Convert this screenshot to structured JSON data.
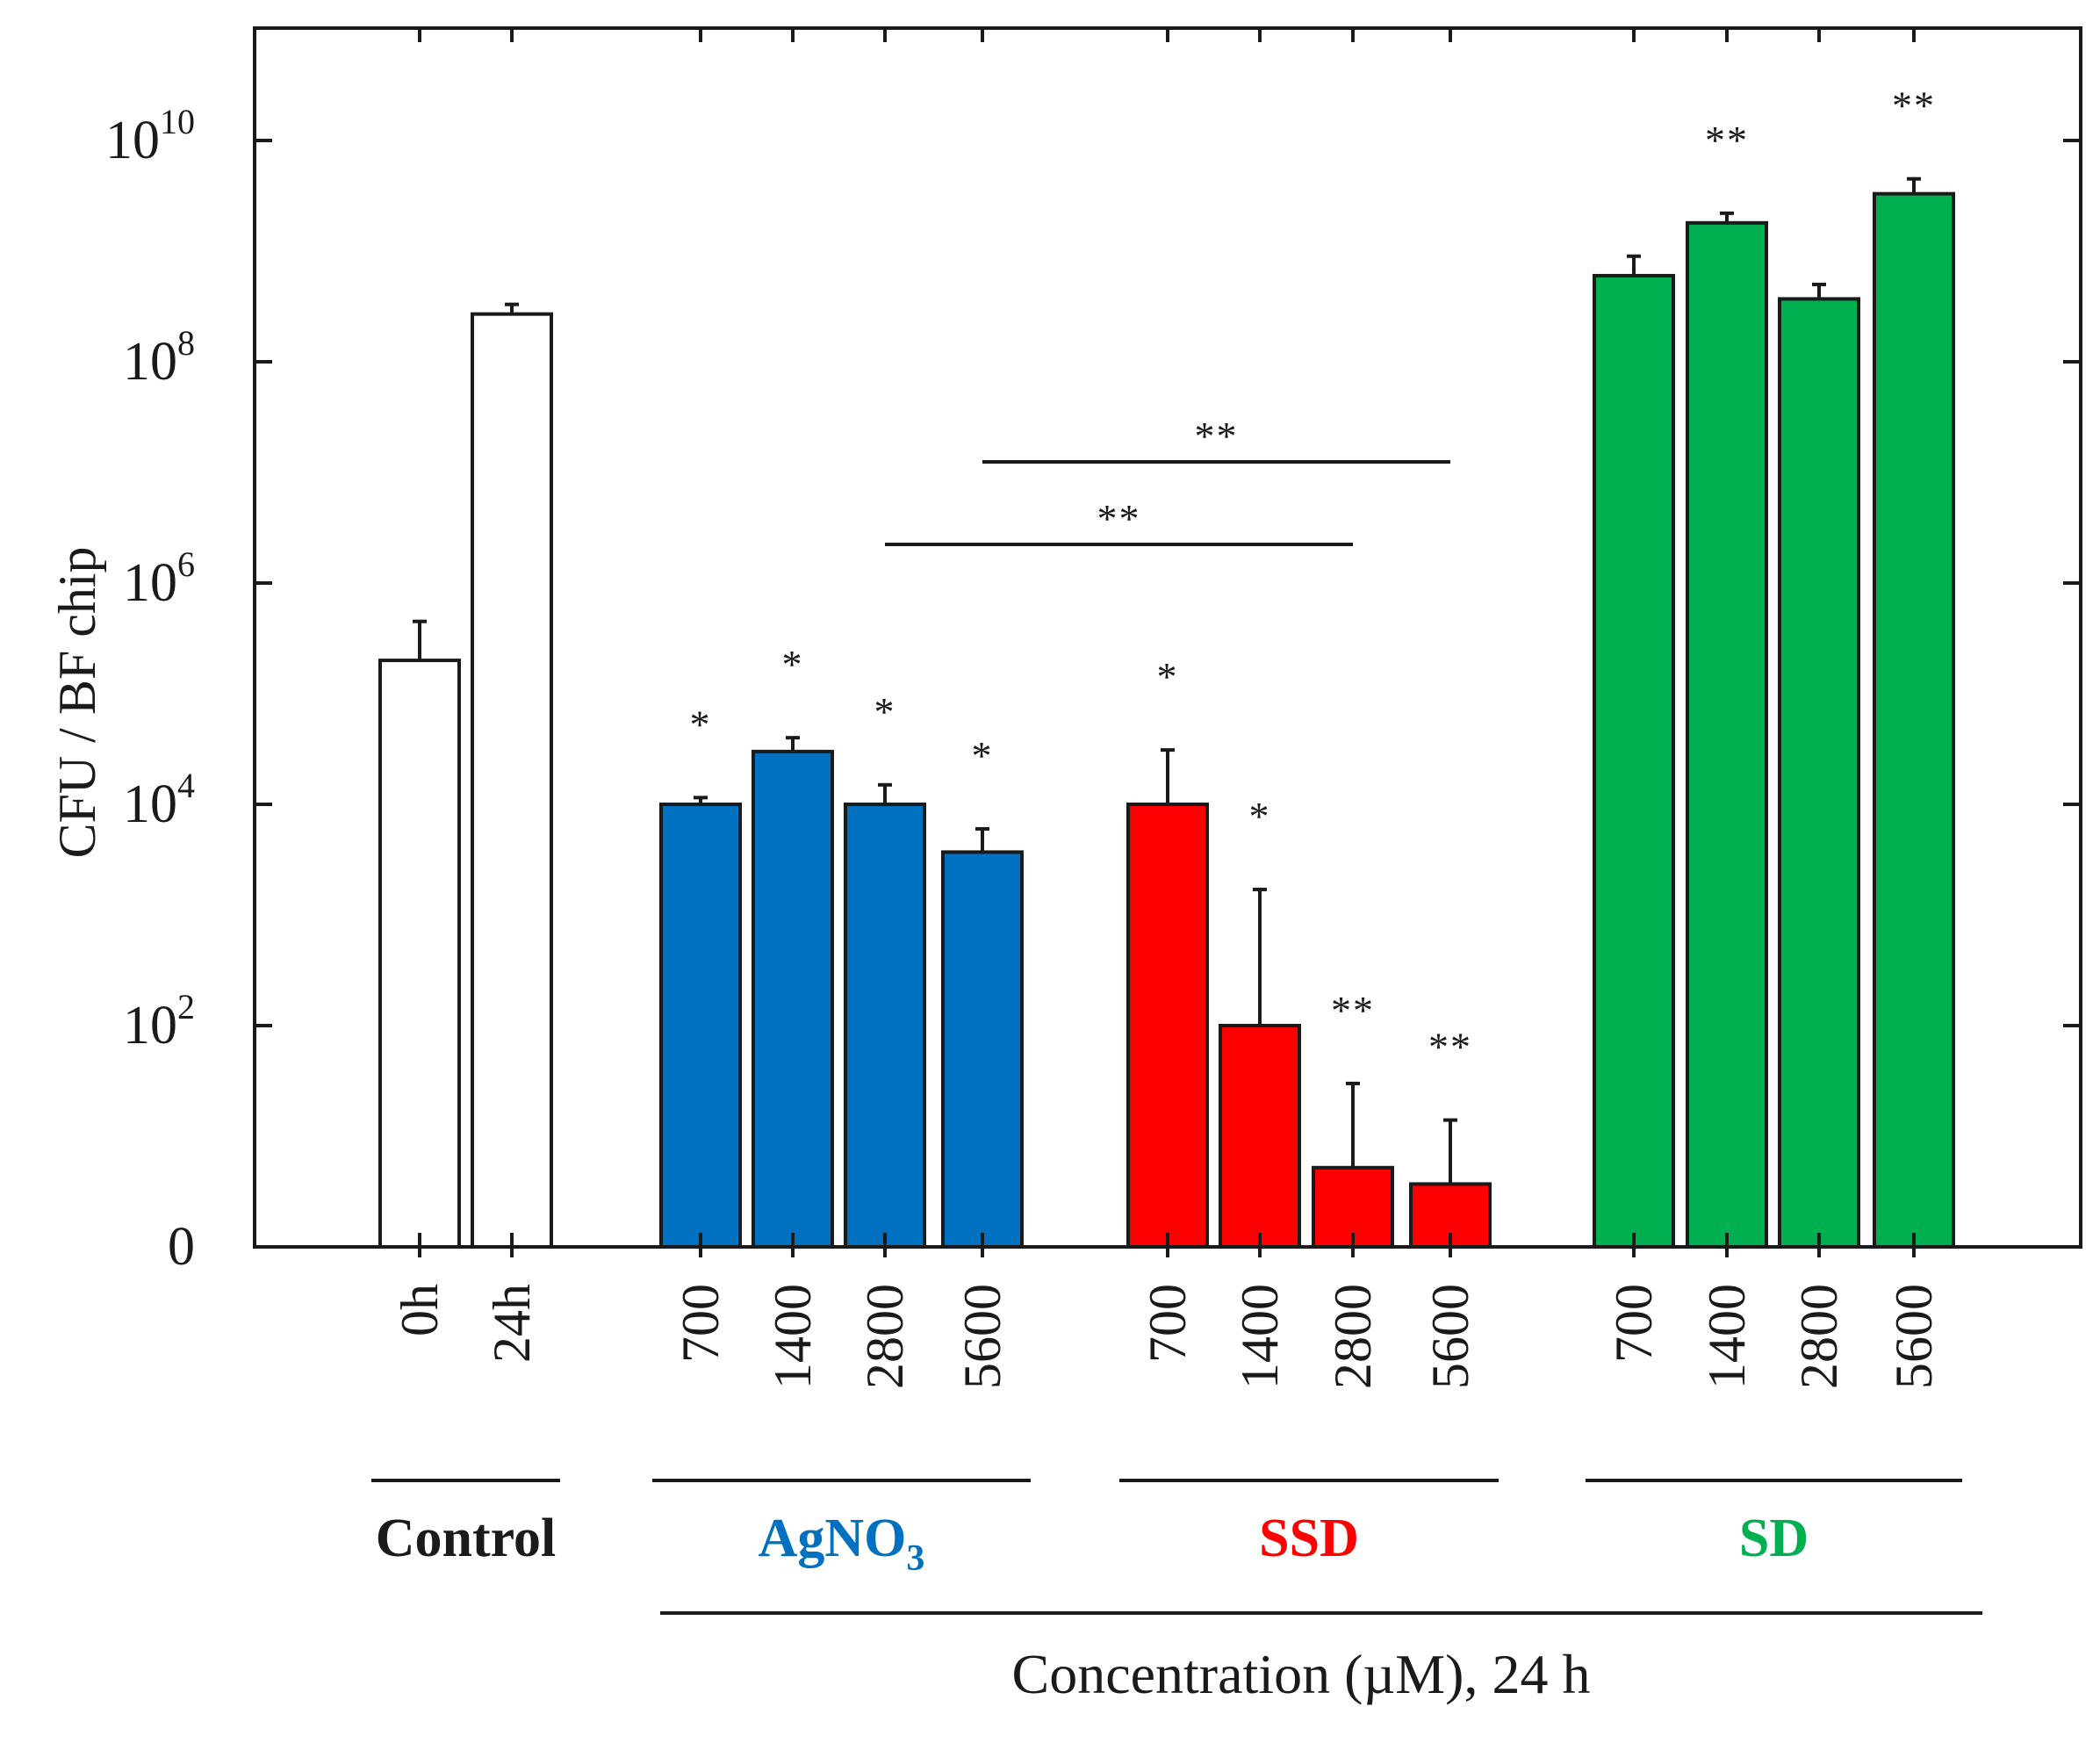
{
  "chart_data": {
    "type": "bar",
    "y_scale": "log",
    "ylabel": "CFU / BF chip",
    "xlabel": "Concentration (µM), 24 h",
    "ylim": [
      1,
      100000000000
    ],
    "y_ticks": [
      {
        "value": 1,
        "base": "0",
        "exp": ""
      },
      {
        "value": 100,
        "base": "10",
        "exp": "2"
      },
      {
        "value": 10000,
        "base": "10",
        "exp": "4"
      },
      {
        "value": 1000000,
        "base": "10",
        "exp": "6"
      },
      {
        "value": 100000000,
        "base": "10",
        "exp": "8"
      },
      {
        "value": 10000000000,
        "base": "10",
        "exp": "10"
      }
    ],
    "groups": [
      {
        "name": "Control",
        "color": "#ffffff",
        "label_color": "#1a1a1a",
        "bars": [
          {
            "label": "0h",
            "value": 200000,
            "err": 450000,
            "sig": ""
          },
          {
            "label": "24h",
            "value": 270000000,
            "err": 330000000,
            "sig": ""
          }
        ]
      },
      {
        "name": "AgNO",
        "sub": "3",
        "color": "#0070c0",
        "label_color": "#0070c0",
        "bars": [
          {
            "label": "700",
            "value": 10000,
            "err": 11500,
            "sig": "*"
          },
          {
            "label": "1400",
            "value": 30000,
            "err": 40000,
            "sig": "*"
          },
          {
            "label": "2800",
            "value": 10000,
            "err": 15000,
            "sig": "*"
          },
          {
            "label": "5600",
            "value": 3700,
            "err": 6000,
            "sig": "*"
          }
        ]
      },
      {
        "name": "SSD",
        "color": "#ff0000",
        "label_color": "#ff0000",
        "bars": [
          {
            "label": "700",
            "value": 10000,
            "err": 31000,
            "sig": "*"
          },
          {
            "label": "1400",
            "value": 100,
            "err": 1700,
            "sig": "*"
          },
          {
            "label": "2800",
            "value": 5.2,
            "err": 30,
            "sig": "**"
          },
          {
            "label": "5600",
            "value": 3.7,
            "err": 14,
            "sig": "**"
          }
        ]
      },
      {
        "name": "SD",
        "color": "#00b050",
        "label_color": "#00b050",
        "bars": [
          {
            "label": "700",
            "value": 600000000,
            "err": 900000000,
            "sig": ""
          },
          {
            "label": "1400",
            "value": 1800000000,
            "err": 2200000000,
            "sig": "**"
          },
          {
            "label": "2800",
            "value": 370000000,
            "err": 500000000,
            "sig": ""
          },
          {
            "label": "5600",
            "value": 3300000000,
            "err": 4500000000,
            "sig": "**"
          }
        ]
      }
    ],
    "comparisons": [
      {
        "from": "AgNO3 2800",
        "to": "SSD 2800",
        "label": "**"
      },
      {
        "from": "AgNO3 5600",
        "to": "SSD 5600",
        "label": "**"
      }
    ]
  }
}
